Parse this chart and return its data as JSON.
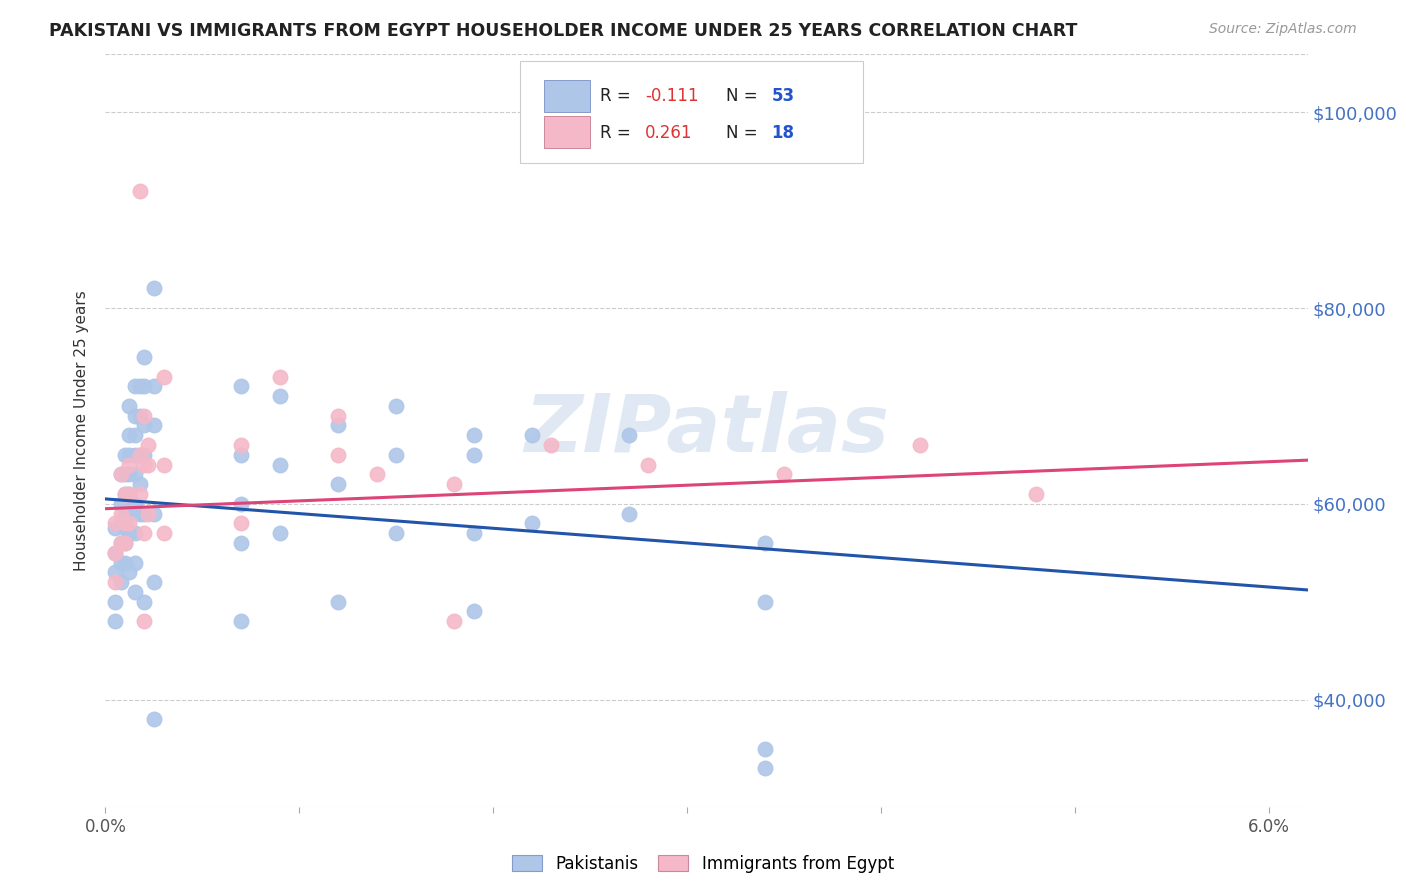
{
  "title": "PAKISTANI VS IMMIGRANTS FROM EGYPT HOUSEHOLDER INCOME UNDER 25 YEARS CORRELATION CHART",
  "source": "Source: ZipAtlas.com",
  "ylabel": "Householder Income Under 25 years",
  "xlim": [
    0.0,
    0.062
  ],
  "ylim": [
    29000,
    106000
  ],
  "yticks": [
    40000,
    60000,
    80000,
    100000
  ],
  "ytick_labels": [
    "$40,000",
    "$60,000",
    "$80,000",
    "$100,000"
  ],
  "pakistani_color": "#aec6e8",
  "egypt_color": "#f4b8c8",
  "pakistan_line_color": "#2255aa",
  "egypt_line_color": "#dd4477",
  "watermark": "ZIPatlas",
  "pakistani_scatter": [
    [
      0.0005,
      57500
    ],
    [
      0.0005,
      55000
    ],
    [
      0.0005,
      53000
    ],
    [
      0.0005,
      50000
    ],
    [
      0.0005,
      48000
    ],
    [
      0.0008,
      63000
    ],
    [
      0.0008,
      60000
    ],
    [
      0.0008,
      58000
    ],
    [
      0.0008,
      56000
    ],
    [
      0.0008,
      54000
    ],
    [
      0.0008,
      52000
    ],
    [
      0.001,
      65000
    ],
    [
      0.001,
      63000
    ],
    [
      0.001,
      61000
    ],
    [
      0.001,
      59000
    ],
    [
      0.001,
      57500
    ],
    [
      0.001,
      56000
    ],
    [
      0.001,
      54000
    ],
    [
      0.0012,
      70000
    ],
    [
      0.0012,
      67000
    ],
    [
      0.0012,
      65000
    ],
    [
      0.0012,
      63000
    ],
    [
      0.0012,
      61000
    ],
    [
      0.0012,
      59000
    ],
    [
      0.0012,
      57000
    ],
    [
      0.0012,
      53000
    ],
    [
      0.0015,
      72000
    ],
    [
      0.0015,
      69000
    ],
    [
      0.0015,
      67000
    ],
    [
      0.0015,
      65000
    ],
    [
      0.0015,
      63000
    ],
    [
      0.0015,
      60000
    ],
    [
      0.0015,
      57000
    ],
    [
      0.0015,
      54000
    ],
    [
      0.0015,
      51000
    ],
    [
      0.0018,
      72000
    ],
    [
      0.0018,
      69000
    ],
    [
      0.0018,
      65000
    ],
    [
      0.0018,
      62000
    ],
    [
      0.0018,
      59000
    ],
    [
      0.002,
      75000
    ],
    [
      0.002,
      72000
    ],
    [
      0.002,
      68000
    ],
    [
      0.002,
      65000
    ],
    [
      0.002,
      59000
    ],
    [
      0.002,
      50000
    ],
    [
      0.0025,
      82000
    ],
    [
      0.0025,
      72000
    ],
    [
      0.0025,
      68000
    ],
    [
      0.0025,
      59000
    ],
    [
      0.0025,
      52000
    ],
    [
      0.0025,
      38000
    ],
    [
      0.007,
      72000
    ],
    [
      0.007,
      65000
    ],
    [
      0.007,
      60000
    ],
    [
      0.007,
      56000
    ],
    [
      0.007,
      48000
    ],
    [
      0.009,
      71000
    ],
    [
      0.009,
      64000
    ],
    [
      0.009,
      57000
    ],
    [
      0.012,
      68000
    ],
    [
      0.012,
      62000
    ],
    [
      0.012,
      50000
    ],
    [
      0.015,
      70000
    ],
    [
      0.015,
      65000
    ],
    [
      0.015,
      57000
    ],
    [
      0.019,
      67000
    ],
    [
      0.019,
      65000
    ],
    [
      0.019,
      57000
    ],
    [
      0.019,
      49000
    ],
    [
      0.022,
      67000
    ],
    [
      0.022,
      58000
    ],
    [
      0.027,
      67000
    ],
    [
      0.027,
      59000
    ],
    [
      0.034,
      56000
    ],
    [
      0.034,
      50000
    ],
    [
      0.034,
      35000
    ],
    [
      0.034,
      33000
    ]
  ],
  "egypt_scatter": [
    [
      0.0005,
      58000
    ],
    [
      0.0005,
      55000
    ],
    [
      0.0005,
      52000
    ],
    [
      0.0008,
      63000
    ],
    [
      0.0008,
      59000
    ],
    [
      0.0008,
      56000
    ],
    [
      0.001,
      61000
    ],
    [
      0.001,
      58000
    ],
    [
      0.001,
      56000
    ],
    [
      0.0012,
      64000
    ],
    [
      0.0012,
      61000
    ],
    [
      0.0012,
      58000
    ],
    [
      0.0018,
      92000
    ],
    [
      0.0018,
      65000
    ],
    [
      0.0018,
      61000
    ],
    [
      0.002,
      69000
    ],
    [
      0.002,
      64000
    ],
    [
      0.002,
      57000
    ],
    [
      0.002,
      48000
    ],
    [
      0.0022,
      66000
    ],
    [
      0.0022,
      64000
    ],
    [
      0.0022,
      59000
    ],
    [
      0.003,
      73000
    ],
    [
      0.003,
      64000
    ],
    [
      0.003,
      57000
    ],
    [
      0.007,
      66000
    ],
    [
      0.007,
      58000
    ],
    [
      0.009,
      73000
    ],
    [
      0.012,
      69000
    ],
    [
      0.012,
      65000
    ],
    [
      0.014,
      63000
    ],
    [
      0.018,
      62000
    ],
    [
      0.018,
      48000
    ],
    [
      0.023,
      66000
    ],
    [
      0.028,
      64000
    ],
    [
      0.035,
      63000
    ],
    [
      0.042,
      66000
    ],
    [
      0.048,
      61000
    ]
  ],
  "pakistan_trend": [
    -150000,
    60500
  ],
  "egypt_trend": [
    80000,
    59500
  ]
}
